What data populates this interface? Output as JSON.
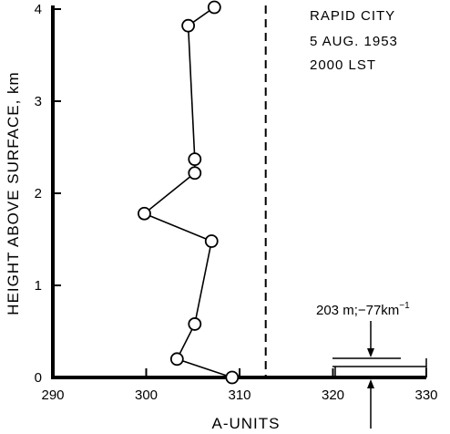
{
  "chart_data": {
    "type": "line",
    "title": "",
    "annotation": [
      "RAPID CITY",
      "5 AUG. 1953",
      "2000 LST"
    ],
    "xlabel": "A-UNITS",
    "ylabel": "HEIGHT ABOVE SURFACE, km",
    "xlim": [
      290,
      330
    ],
    "ylim": [
      0,
      4
    ],
    "x_ticks": [
      "290",
      "300",
      "310",
      "320",
      "330"
    ],
    "y_ticks": [
      "0",
      "1",
      "2",
      "3",
      "4"
    ],
    "grid": false,
    "legend": "none",
    "series": [
      {
        "points": [
          {
            "x": 309.2,
            "y": 0.0
          },
          {
            "x": 303.3,
            "y": 0.2
          },
          {
            "x": 305.2,
            "y": 0.58
          },
          {
            "x": 307.0,
            "y": 1.48
          },
          {
            "x": 299.8,
            "y": 1.78
          },
          {
            "x": 305.2,
            "y": 2.22
          },
          {
            "x": 305.2,
            "y": 2.37
          },
          {
            "x": 304.5,
            "y": 3.82
          },
          {
            "x": 307.3,
            "y": 4.02
          }
        ]
      }
    ],
    "reference_line": {
      "x": 312.8,
      "style": "dashed"
    },
    "scale_label": "203 m;−77km",
    "scale_label_superscript": "−1"
  }
}
